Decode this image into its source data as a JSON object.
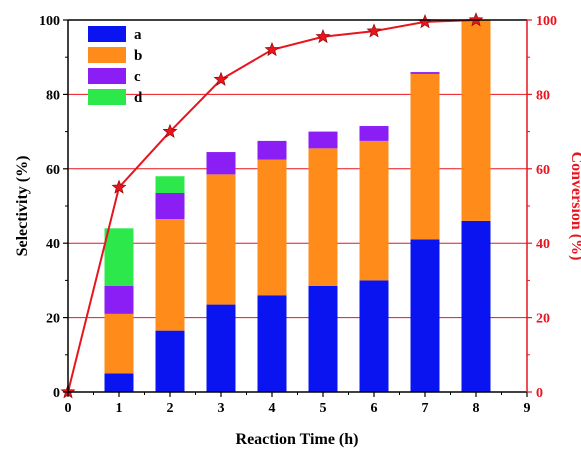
{
  "chart_data": {
    "type": "bar",
    "xlabel": "Reaction Time (h)",
    "ylabel_left": "Selectivity (%)",
    "ylabel_right": "Conversion (%)",
    "xlim": [
      0,
      9
    ],
    "ylim_left": [
      0,
      100
    ],
    "ylim_right": [
      0,
      100
    ],
    "x_ticks": [
      "0",
      "1",
      "2",
      "3",
      "4",
      "5",
      "6",
      "7",
      "8",
      "9"
    ],
    "y_ticks": [
      "0",
      "20",
      "40",
      "60",
      "80",
      "100"
    ],
    "grid": "right-axis major gridlines (red)",
    "legend_position": "top-left",
    "bar_x": [
      1,
      2,
      3,
      4,
      5,
      6,
      7,
      8
    ],
    "stack_series": [
      {
        "name": "a",
        "color": "#0a14f0",
        "values": [
          5,
          16.5,
          23.5,
          26,
          28.5,
          30,
          41,
          46
        ]
      },
      {
        "name": "b",
        "color": "#ff8c1a",
        "values": [
          16,
          30,
          35,
          36.5,
          37,
          37.5,
          44.5,
          54
        ]
      },
      {
        "name": "c",
        "color": "#8a1ef5",
        "values": [
          7.5,
          7,
          6,
          5,
          4.5,
          4,
          0.5,
          0
        ]
      },
      {
        "name": "d",
        "color": "#2de84a",
        "values": [
          15.5,
          4.5,
          0,
          0,
          0,
          0,
          0,
          0
        ]
      }
    ],
    "line_series": {
      "axis": "right",
      "color": "#e8141e",
      "marker": "star",
      "x": [
        0,
        1,
        2,
        3,
        4,
        5,
        6,
        7,
        8
      ],
      "y": [
        0,
        55,
        70,
        84,
        92,
        95.5,
        97,
        99.5,
        100
      ]
    }
  }
}
